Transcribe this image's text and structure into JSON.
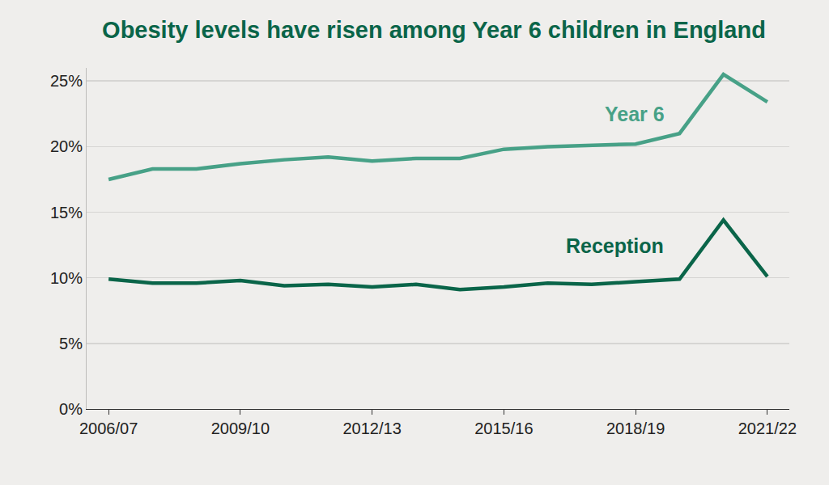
{
  "chart_data": {
    "type": "line",
    "title": "Obesity levels have risen among Year 6 children in England",
    "categories": [
      "2006/07",
      null,
      null,
      "2009/10",
      null,
      null,
      "2012/13",
      null,
      null,
      "2015/16",
      null,
      null,
      "2018/19",
      null,
      null,
      "2021/22"
    ],
    "series": [
      {
        "name": "Year 6",
        "color": "#47a187",
        "values": [
          17.5,
          18.3,
          18.3,
          18.7,
          19.0,
          19.2,
          18.9,
          19.1,
          19.1,
          19.8,
          20.0,
          20.1,
          20.2,
          21.0,
          25.5,
          23.4
        ]
      },
      {
        "name": "Reception",
        "color": "#0a6549",
        "values": [
          9.9,
          9.6,
          9.6,
          9.8,
          9.4,
          9.5,
          9.3,
          9.5,
          9.1,
          9.3,
          9.6,
          9.5,
          9.7,
          9.9,
          14.4,
          10.1
        ]
      }
    ],
    "ylim": [
      0,
      26
    ],
    "yticks": [
      {
        "value": 0,
        "label": "0%"
      },
      {
        "value": 5,
        "label": "5%"
      },
      {
        "value": 10,
        "label": "10%"
      },
      {
        "value": 15,
        "label": "15%"
      },
      {
        "value": 20,
        "label": "20%"
      },
      {
        "value": 25,
        "label": "25%"
      }
    ],
    "grid": true
  }
}
